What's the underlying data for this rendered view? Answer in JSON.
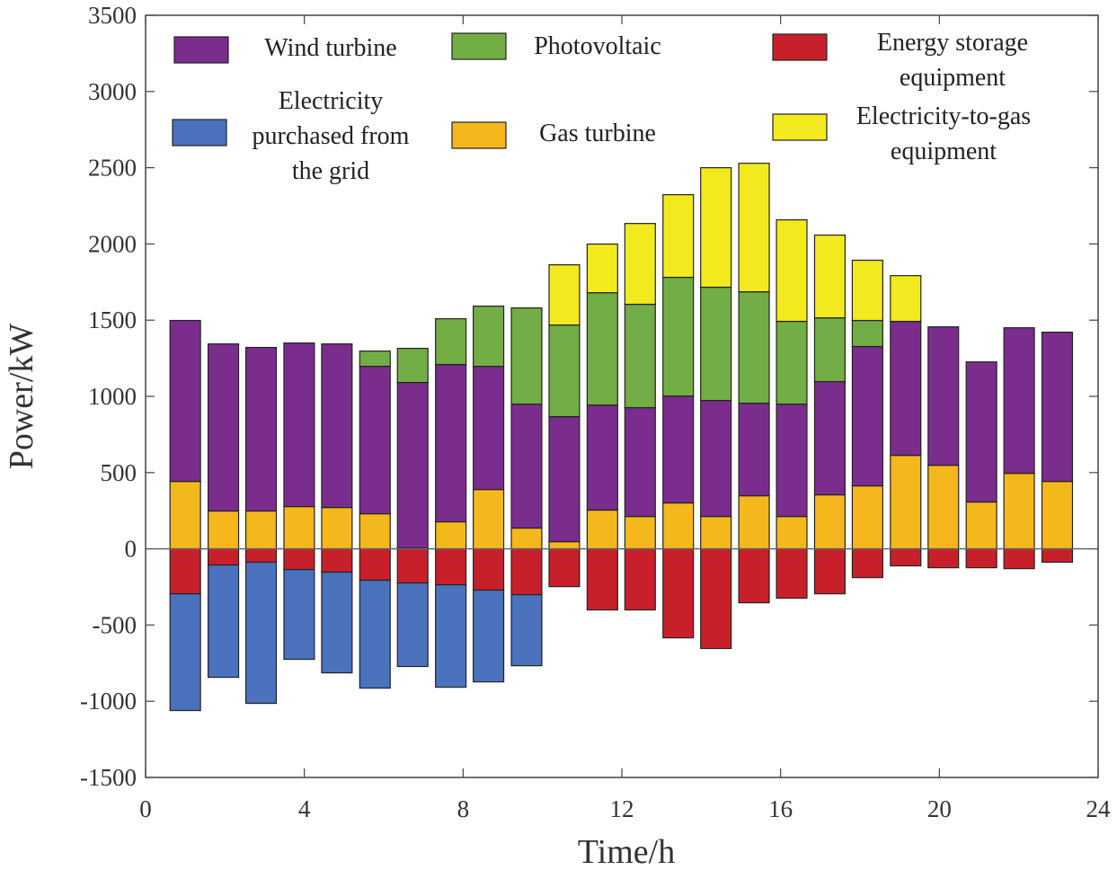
{
  "chart_data": {
    "type": "stacked_bar",
    "x_label": "Time/h",
    "y_label": "Power/kW",
    "x": [
      1,
      1.96,
      2.91,
      3.87,
      4.82,
      5.78,
      6.73,
      7.69,
      8.64,
      9.6,
      10.55,
      11.51,
      12.46,
      13.42,
      14.37,
      15.33,
      16.28,
      17.24,
      18.19,
      19.15,
      20.1,
      21.06,
      22.01,
      22.97
    ],
    "xlim": [
      0,
      24
    ],
    "xticks": [
      0,
      4,
      8,
      12,
      16,
      20,
      24
    ],
    "ylim": [
      -1500,
      3500
    ],
    "yticks": [
      -1500,
      -1000,
      -500,
      0,
      500,
      1000,
      1500,
      2000,
      2500,
      3000,
      3500
    ],
    "series": [
      {
        "name": "Gas turbine",
        "color": "#f5b81c",
        "values": [
          442,
          248,
          248,
          277,
          271,
          230,
          5,
          177,
          389,
          136,
          47,
          254,
          212,
          301,
          212,
          348,
          212,
          354,
          413,
          613,
          548,
          307,
          495,
          442
        ]
      },
      {
        "name": "Wind turbine",
        "color": "#7b2d8e",
        "values": [
          1056,
          1096,
          1073,
          1073,
          1073,
          967,
          1086,
          1032,
          808,
          813,
          820,
          689,
          714,
          701,
          761,
          607,
          737,
          743,
          914,
          879,
          908,
          919,
          955,
          979
        ]
      },
      {
        "name": "Photovoltaic",
        "color": "#73ad45",
        "values": [
          null,
          null,
          null,
          null,
          null,
          100,
          224,
          300,
          395,
          631,
          601,
          737,
          678,
          779,
          743,
          731,
          543,
          418,
          171,
          null,
          null,
          null,
          null,
          null
        ]
      },
      {
        "name": "Electricity-to-gas equipment",
        "color": "#f2ea1f",
        "values": [
          null,
          null,
          null,
          null,
          null,
          null,
          null,
          null,
          null,
          null,
          395,
          319,
          530,
          542,
          784,
          843,
          666,
          543,
          395,
          300,
          null,
          null,
          null,
          null
        ]
      },
      {
        "name": "Energy storage equipment",
        "color": "#c8202b",
        "values": [
          -295,
          -106,
          -88,
          -136,
          -153,
          -206,
          -224,
          -236,
          -271,
          -301,
          -248,
          -401,
          -401,
          -584,
          -654,
          -354,
          -324,
          -295,
          -189,
          -112,
          -124,
          -124,
          -130,
          -88
        ]
      },
      {
        "name": "Electricity purchased from the grid",
        "color": "#4a72bd",
        "values": [
          -766,
          -737,
          -926,
          -589,
          -661,
          -708,
          -548,
          -672,
          -602,
          -466,
          null,
          null,
          null,
          null,
          null,
          null,
          null,
          null,
          null,
          null,
          null,
          null,
          null,
          null
        ]
      }
    ]
  }
}
